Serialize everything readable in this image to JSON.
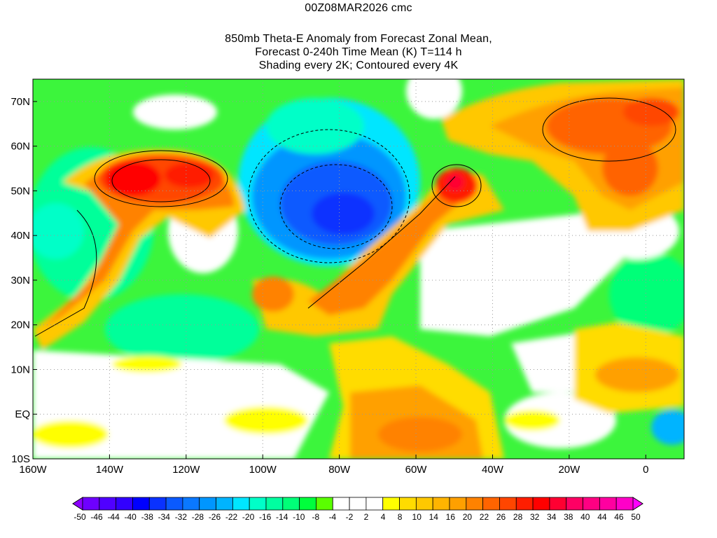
{
  "title": {
    "line1": "00Z08MAR2026 cmc",
    "line2": "850mb Theta-E Anomaly from Forecast Zonal Mean,",
    "line3": "Forecast 0-240h Time Mean (K) T=114 h",
    "line4": "Shading every 2K; Contoured every 4K"
  },
  "map": {
    "lon_range": [
      -160,
      10
    ],
    "lat_range": [
      -10,
      75
    ],
    "lon_ticks": [
      {
        "value": -160,
        "label": "160W"
      },
      {
        "value": -140,
        "label": "140W"
      },
      {
        "value": -120,
        "label": "120W"
      },
      {
        "value": -100,
        "label": "100W"
      },
      {
        "value": -80,
        "label": "80W"
      },
      {
        "value": -60,
        "label": "60W"
      },
      {
        "value": -40,
        "label": "40W"
      },
      {
        "value": -20,
        "label": "20W"
      },
      {
        "value": 0,
        "label": "0"
      }
    ],
    "lat_ticks": [
      {
        "value": 70,
        "label": "70N"
      },
      {
        "value": 60,
        "label": "60N"
      },
      {
        "value": 50,
        "label": "50N"
      },
      {
        "value": 40,
        "label": "40N"
      },
      {
        "value": 30,
        "label": "30N"
      },
      {
        "value": 20,
        "label": "20N"
      },
      {
        "value": 10,
        "label": "10N"
      },
      {
        "value": 0,
        "label": "EQ"
      },
      {
        "value": -10,
        "label": "10S"
      }
    ]
  },
  "colorbar": {
    "labels": [
      "-50",
      "-46",
      "-44",
      "-40",
      "-38",
      "-34",
      "-32",
      "-28",
      "-26",
      "-22",
      "-20",
      "-16",
      "-14",
      "-10",
      "-8",
      "-4",
      "-2",
      "2",
      "4",
      "8",
      "10",
      "14",
      "16",
      "20",
      "22",
      "26",
      "28",
      "32",
      "34",
      "38",
      "40",
      "44",
      "46",
      "50"
    ],
    "low_arrow_color": "#8c00ff",
    "high_arrow_color": "#ff00ff",
    "colors": [
      "#6e00ff",
      "#5000ff",
      "#3200ff",
      "#0000ff",
      "#0a32ff",
      "#0a5aff",
      "#0a78ff",
      "#0096ff",
      "#00b4ff",
      "#00e6ff",
      "#00ffc8",
      "#00ffa0",
      "#00ff78",
      "#00ff3c",
      "#5aff00",
      "#ffffff",
      "#ffffff",
      "#ffffff",
      "#ffff00",
      "#ffdc00",
      "#ffc800",
      "#ffb400",
      "#ffa000",
      "#ff8200",
      "#ff6400",
      "#ff4600",
      "#ff1e00",
      "#ff0000",
      "#ff0032",
      "#ff0064",
      "#ff0082",
      "#ff00a0",
      "#ff00c8"
    ]
  }
}
